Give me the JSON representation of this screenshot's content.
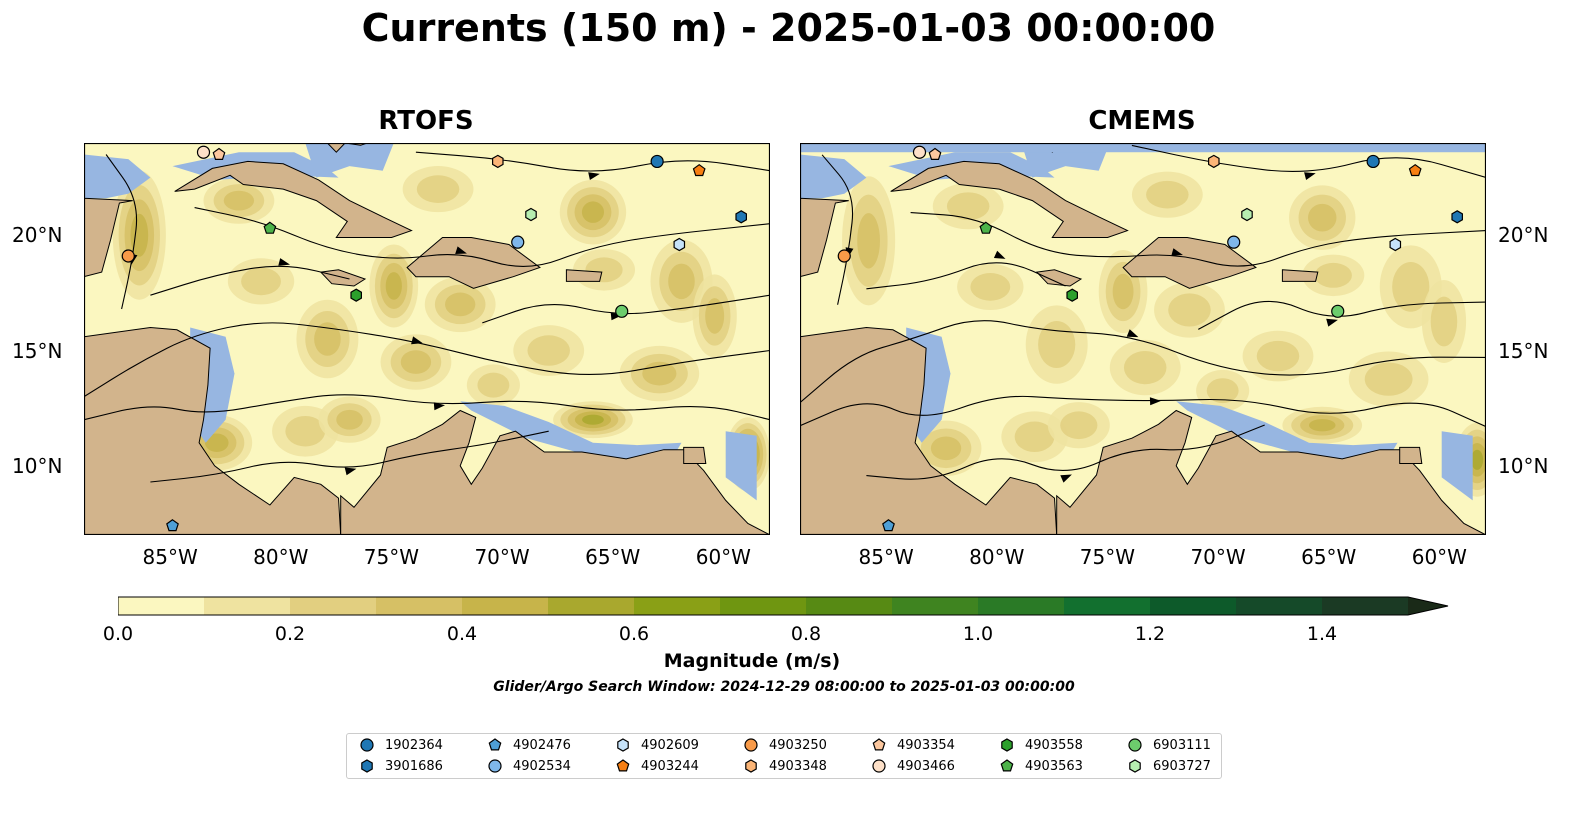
{
  "title": "Currents (150 m) - 2025-01-03 00:00:00",
  "panels": [
    {
      "title": "RTOFS"
    },
    {
      "title": "CMEMS"
    }
  ],
  "axes": {
    "lon_labels": [
      "85°W",
      "80°W",
      "75°W",
      "70°W",
      "65°W",
      "60°W"
    ],
    "lon_values": [
      -85,
      -80,
      -75,
      -70,
      -65,
      -60
    ],
    "lat_labels": [
      "20°N",
      "15°N",
      "10°N"
    ],
    "lat_values": [
      20,
      15,
      10
    ],
    "lon_range": [
      -89,
      -58
    ],
    "lat_range": [
      7,
      24
    ]
  },
  "colorbar": {
    "label": "Magnitude (m/s)",
    "ticks": [
      "0.0",
      "0.2",
      "0.4",
      "0.6",
      "0.8",
      "1.0",
      "1.2",
      "1.4"
    ],
    "tick_values": [
      0,
      0.2,
      0.4,
      0.6,
      0.8,
      1.0,
      1.2,
      1.4
    ],
    "range": [
      0,
      1.5
    ],
    "extend": "max",
    "colors": [
      "#fbf7c0",
      "#efe3a0",
      "#e2cf80",
      "#d6c065",
      "#c7b44a",
      "#a9a82e",
      "#8aa016",
      "#6f9611",
      "#578a14",
      "#3f8420",
      "#2a7a26",
      "#12702f",
      "#0d5a2a",
      "#154a29",
      "#1b3a24",
      "#1a2a18"
    ]
  },
  "search_window": "Glider/Argo Search Window: 2024-12-29 08:00:00 to 2025-01-03 00:00:00",
  "colors": {
    "land": "#d2b48c",
    "shallow_water": "#97b6e1"
  },
  "legend": [
    {
      "id": "1902364",
      "marker": "circle",
      "color": "#1f77b4"
    },
    {
      "id": "3901686",
      "marker": "hexagon",
      "color": "#1f77b4"
    },
    {
      "id": "4902476",
      "marker": "pentagon",
      "color": "#4e9fd6"
    },
    {
      "id": "4902534",
      "marker": "circle",
      "color": "#7fb7ea"
    },
    {
      "id": "4902609",
      "marker": "hexagon",
      "color": "#c6e3fa"
    },
    {
      "id": "4903244",
      "marker": "pentagon",
      "color": "#f77f13"
    },
    {
      "id": "4903250",
      "marker": "circle",
      "color": "#f89a48"
    },
    {
      "id": "4903348",
      "marker": "hexagon",
      "color": "#fbb577"
    },
    {
      "id": "4903354",
      "marker": "pentagon",
      "color": "#fcc79e"
    },
    {
      "id": "4903466",
      "marker": "circle",
      "color": "#fde0c8"
    },
    {
      "id": "4903558",
      "marker": "hexagon",
      "color": "#2ca02c"
    },
    {
      "id": "4903563",
      "marker": "pentagon",
      "color": "#4db34a"
    },
    {
      "id": "6903111",
      "marker": "circle",
      "color": "#6ccc6c"
    },
    {
      "id": "6903727",
      "marker": "hexagon",
      "color": "#b7eeb0"
    }
  ],
  "floats": [
    {
      "id": "1902364",
      "lon": -63.1,
      "lat": 23.2
    },
    {
      "id": "3901686",
      "lon": -59.3,
      "lat": 20.8
    },
    {
      "id": "4902476",
      "lon": -85.0,
      "lat": 7.4
    },
    {
      "id": "4902534",
      "lon": -69.4,
      "lat": 19.7
    },
    {
      "id": "4902609",
      "lon": -62.1,
      "lat": 19.6
    },
    {
      "id": "4903244",
      "lon": -61.2,
      "lat": 22.8
    },
    {
      "id": "4903250",
      "lon": -87.0,
      "lat": 19.1
    },
    {
      "id": "4903348",
      "lon": -70.3,
      "lat": 23.2
    },
    {
      "id": "4903354",
      "lon": -82.9,
      "lat": 23.5
    },
    {
      "id": "4903466",
      "lon": -83.6,
      "lat": 23.6
    },
    {
      "id": "4903558",
      "lon": -76.7,
      "lat": 17.4
    },
    {
      "id": "4903563",
      "lon": -80.6,
      "lat": 20.3
    },
    {
      "id": "6903111",
      "lon": -64.7,
      "lat": 16.7
    },
    {
      "id": "6903727",
      "lon": -68.8,
      "lat": 20.9
    }
  ]
}
